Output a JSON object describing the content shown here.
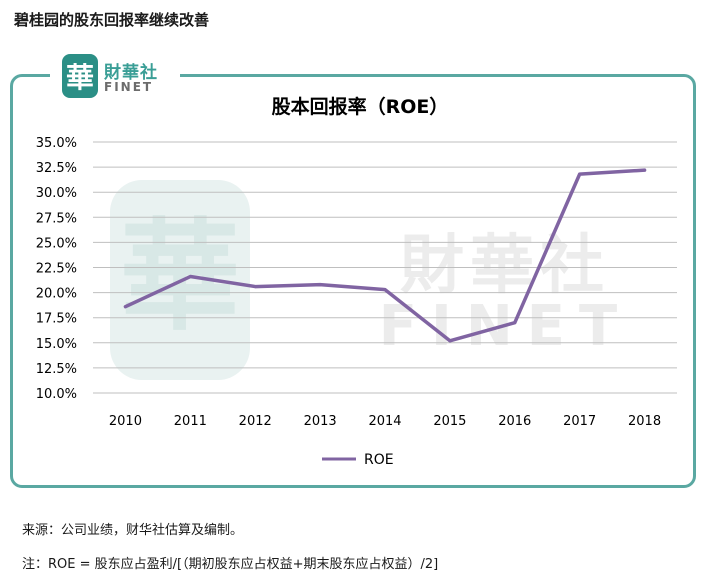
{
  "heading": "碧桂园的股东回报率继续改善",
  "logo": {
    "seal": "華",
    "name_cn": "財華社",
    "name_en": "FINET"
  },
  "watermark": {
    "seal": "華",
    "name_cn": "財華社",
    "name_en": "FINET"
  },
  "footer": {
    "source": "来源：公司业绩，财华社估算及编制。",
    "note": "注：ROE = 股东应占盈利/[（期初股东应占权益+期末股东应占权益）/2]"
  },
  "chart_data": {
    "type": "line",
    "title": "股本回报率（ROE）",
    "xlabel": "",
    "ylabel": "",
    "categories": [
      "2010",
      "2011",
      "2012",
      "2013",
      "2014",
      "2015",
      "2016",
      "2017",
      "2018"
    ],
    "series": [
      {
        "name": "ROE",
        "values": [
          18.6,
          21.6,
          20.6,
          20.8,
          20.3,
          15.2,
          17.0,
          31.8,
          32.2
        ],
        "color": "#8064a2"
      }
    ],
    "ylim": [
      10.0,
      35.0
    ],
    "ytick_step": 2.5,
    "ytick_format": "percent_1dp",
    "grid": true,
    "legend": "bottom"
  }
}
